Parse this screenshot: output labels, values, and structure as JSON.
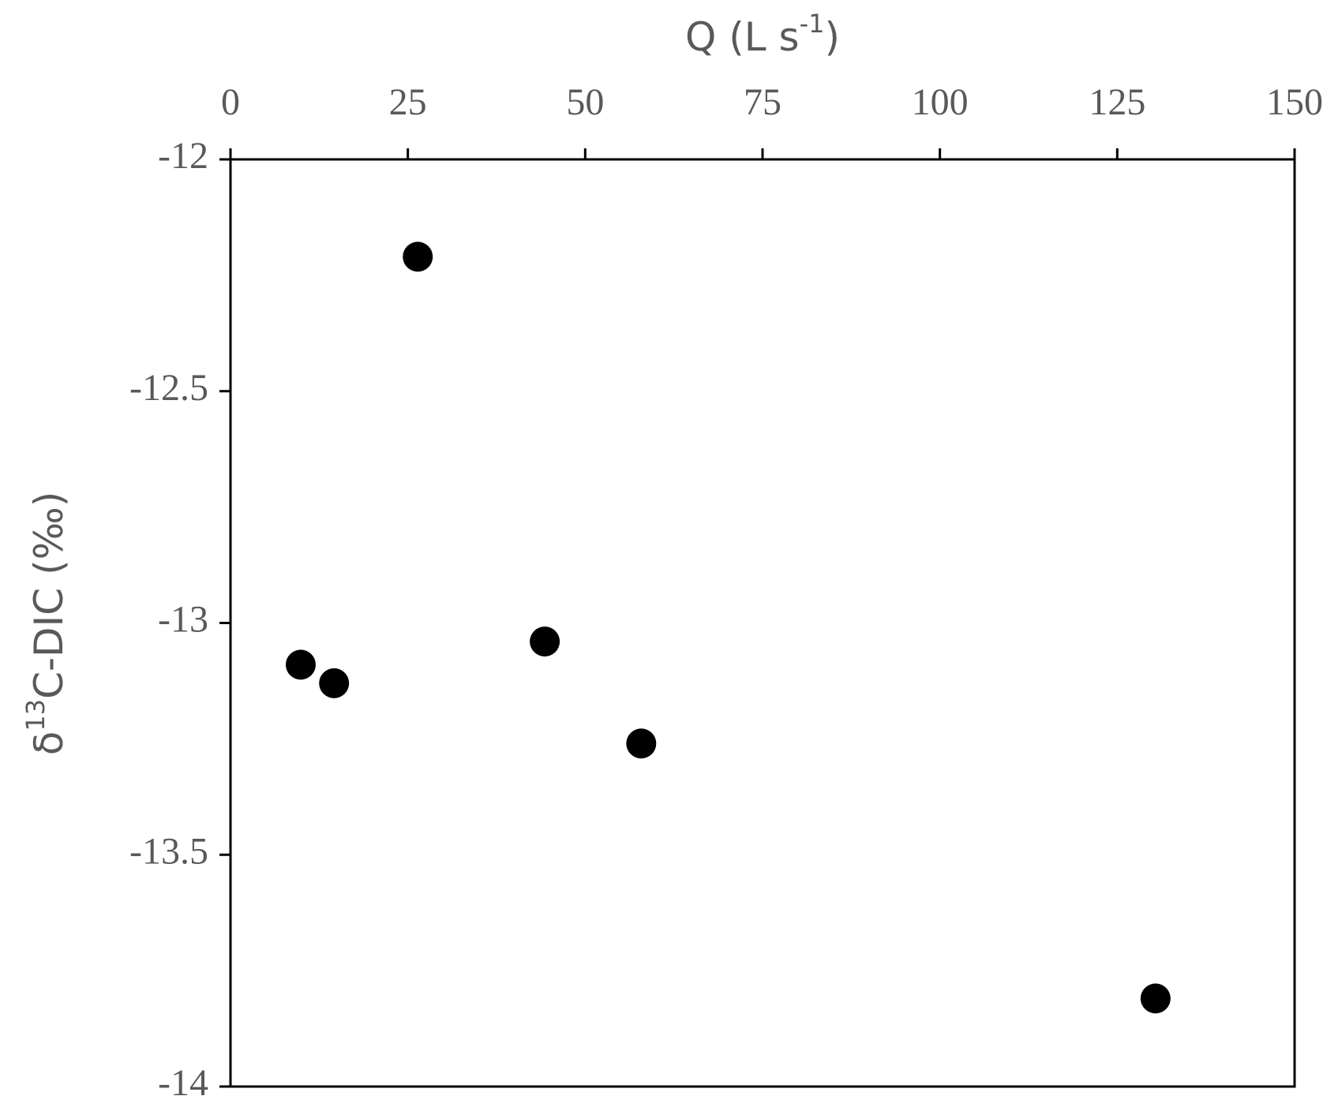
{
  "chart_data": {
    "type": "scatter",
    "xlabel": [
      "Q (L s",
      "-1",
      ")"
    ],
    "ylabel": [
      "δ",
      "13",
      "C-DIC (‰)"
    ],
    "x": [
      26.4,
      9.9,
      14.6,
      44.3,
      57.9,
      130.4
    ],
    "values": [
      -12.21,
      -13.09,
      -13.13,
      -13.04,
      -13.26,
      -13.81
    ],
    "color": "#000000",
    "xlim": [
      0,
      150
    ],
    "xticks": [
      0,
      25,
      50,
      75,
      100,
      125,
      150
    ],
    "ylim": [
      -14,
      -12
    ],
    "yticks": [
      -12,
      -12.5,
      -13,
      -13.5,
      -14
    ]
  }
}
